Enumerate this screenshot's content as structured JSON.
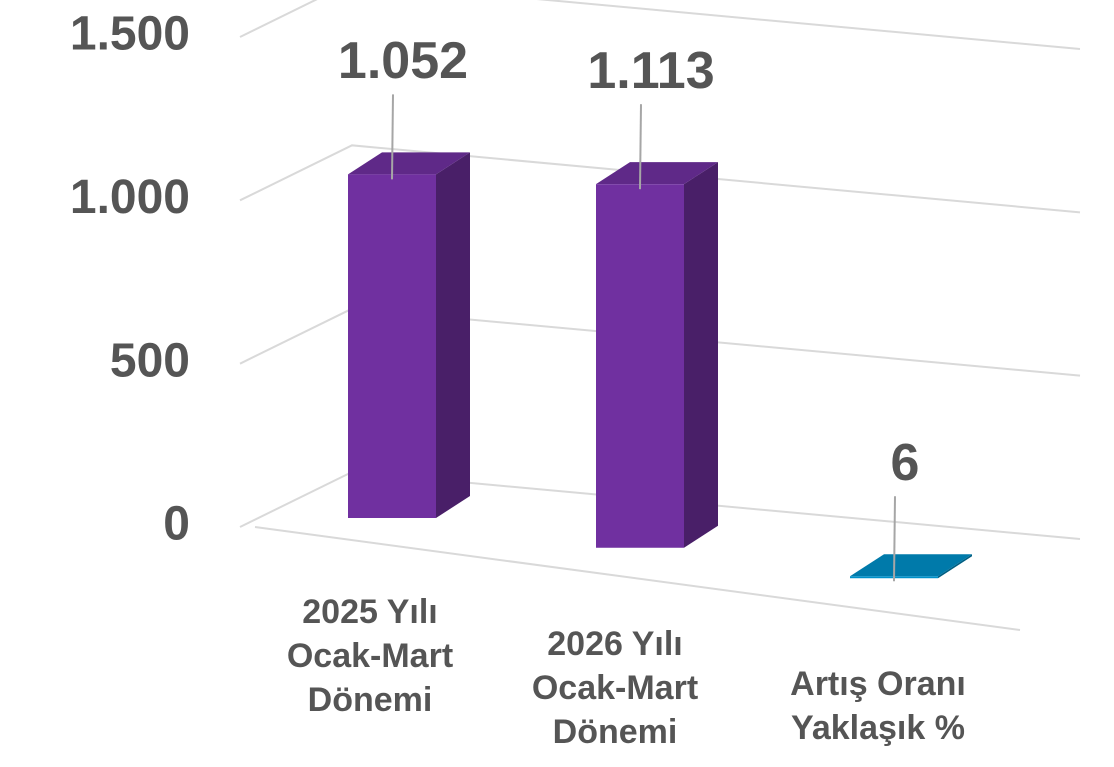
{
  "chart_data": {
    "type": "bar3d",
    "categories": [
      "2025 Yılı Ocak-Mart Dönemi",
      "2026 Yılı Ocak-Mart Dönemi",
      "Artış Oranı Yaklaşık %"
    ],
    "values": [
      1052,
      1113,
      6
    ],
    "value_labels": [
      "1.052",
      "1.113",
      "6"
    ],
    "colors": [
      "#7030a0",
      "#7030a0",
      "#0090c8"
    ],
    "ylim": [
      0,
      1500
    ],
    "yticks": [
      0,
      500,
      {
        "value": 1000,
        "label": "1.000"
      },
      {
        "value": 1500,
        "label": "1.500"
      }
    ],
    "grid": true
  }
}
